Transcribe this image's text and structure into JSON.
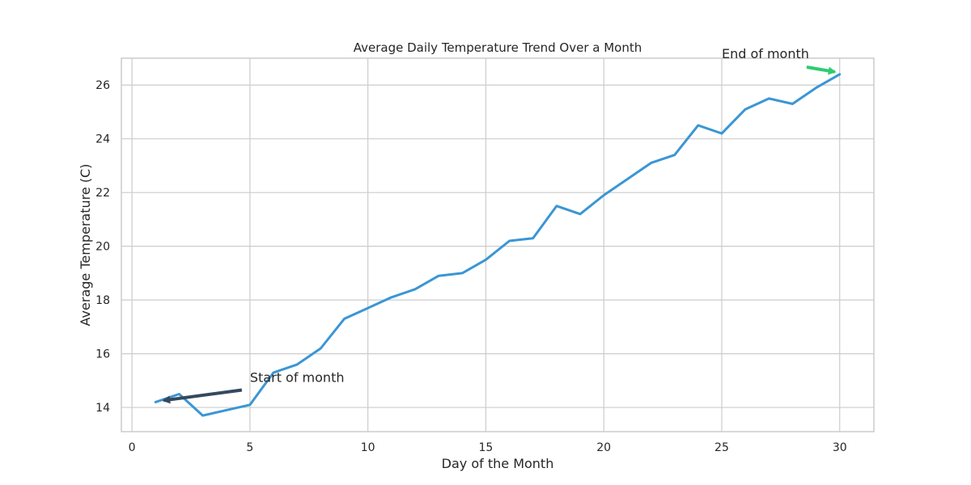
{
  "chart_data": {
    "type": "line",
    "title": "Average Daily Temperature Trend Over a Month",
    "xlabel": "Day of the Month",
    "ylabel": "Average Temperature (C)",
    "xlim": [
      -0.45,
      31.45
    ],
    "ylim": [
      13.1,
      27.0
    ],
    "x_ticks": [
      0,
      5,
      10,
      15,
      20,
      25,
      30
    ],
    "y_ticks": [
      14,
      16,
      18,
      20,
      22,
      24,
      26
    ],
    "grid": true,
    "series": [
      {
        "color": "#3a96d4",
        "x": [
          1,
          2,
          3,
          4,
          5,
          6,
          7,
          8,
          9,
          10,
          11,
          12,
          13,
          14,
          15,
          16,
          17,
          18,
          19,
          20,
          21,
          22,
          23,
          24,
          25,
          26,
          27,
          28,
          29,
          30
        ],
        "values": [
          14.2,
          14.5,
          13.7,
          13.9,
          14.1,
          15.3,
          15.6,
          16.2,
          17.3,
          17.7,
          18.1,
          18.4,
          18.9,
          19.0,
          19.5,
          20.2,
          20.3,
          21.5,
          21.2,
          21.9,
          22.5,
          23.1,
          23.4,
          24.5,
          24.2,
          25.1,
          25.5,
          25.3,
          25.9,
          26.4
        ]
      }
    ],
    "annotations": [
      {
        "text": "Start of month",
        "xy": [
          1,
          14.2
        ],
        "text_xy": [
          5,
          14.95
        ],
        "arrow_color": "#34495e"
      },
      {
        "text": "End of month",
        "xy": [
          30,
          26.4
        ],
        "text_xy": [
          25,
          27.0
        ],
        "arrow_color": "#2ecc71"
      }
    ]
  }
}
